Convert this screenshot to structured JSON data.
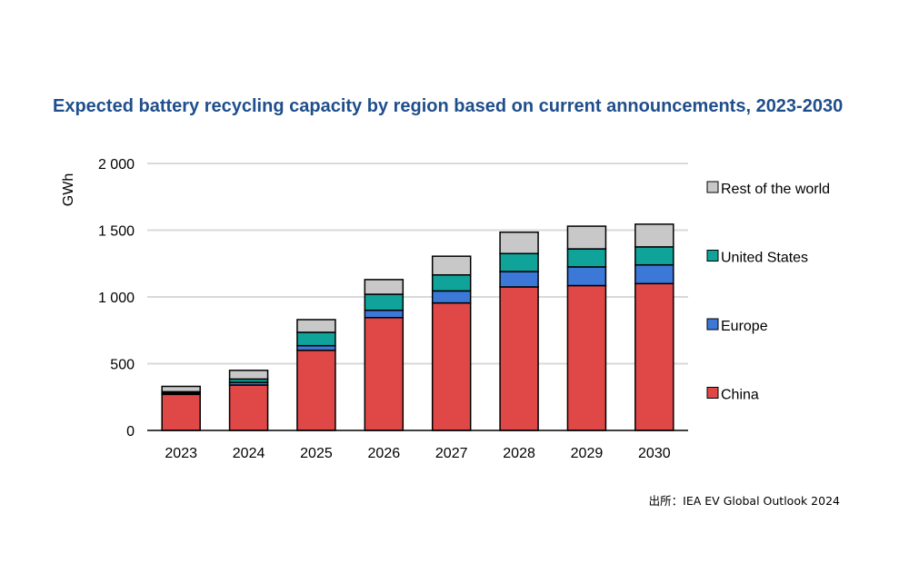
{
  "chart_data": {
    "type": "bar",
    "stacked": true,
    "title": "Expected battery recycling capacity by region based on current announcements, 2023-2030",
    "ylabel": "GWh",
    "xlabel": "",
    "ylim": [
      0,
      2000
    ],
    "yticks": [
      0,
      500,
      1000,
      1500,
      2000
    ],
    "ytick_labels": [
      "0",
      "500",
      "1 000",
      "1 500",
      "2 000"
    ],
    "grid": true,
    "legend_position": "right",
    "categories": [
      "2023",
      "2024",
      "2025",
      "2026",
      "2027",
      "2028",
      "2029",
      "2030"
    ],
    "series": [
      {
        "name": "China",
        "color": "#e04848",
        "values": [
          270,
          340,
          600,
          845,
          955,
          1075,
          1085,
          1100
        ]
      },
      {
        "name": "Europe",
        "color": "#3c78d8",
        "values": [
          10,
          20,
          35,
          55,
          90,
          115,
          140,
          140
        ]
      },
      {
        "name": "United States",
        "color": "#0fa39a",
        "values": [
          10,
          25,
          100,
          120,
          120,
          135,
          135,
          135
        ]
      },
      {
        "name": "Rest of the world",
        "color": "#c8c8c8",
        "values": [
          40,
          65,
          95,
          110,
          140,
          160,
          170,
          170
        ]
      }
    ]
  },
  "source_note": "出所：IEA EV Global Outlook 2024"
}
